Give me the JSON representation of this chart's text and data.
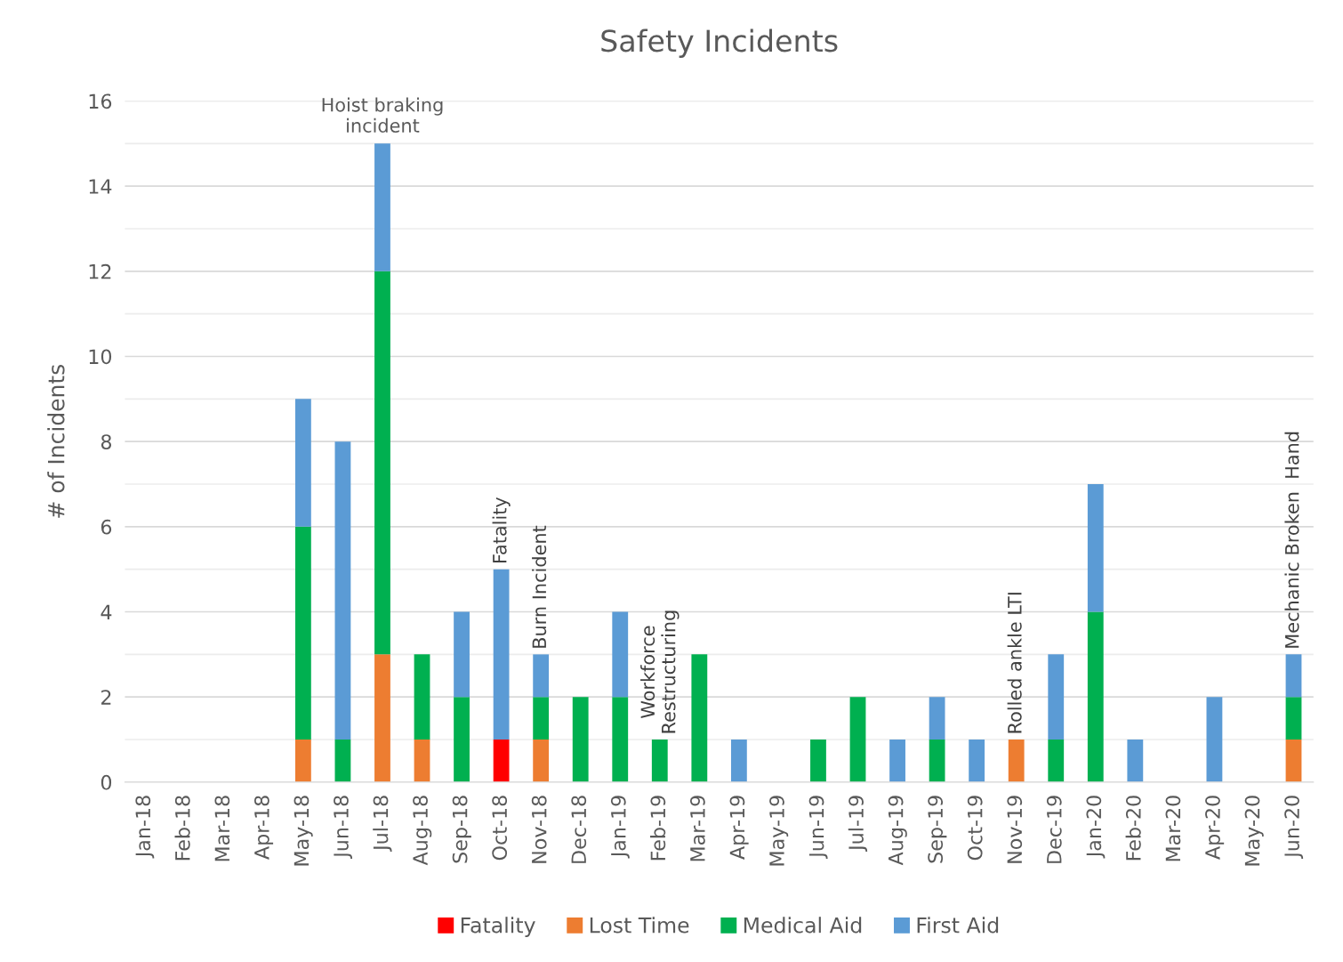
{
  "chart_data": {
    "type": "bar",
    "title": "Safety Incidents",
    "ylabel": "# of Incidents",
    "stacked": true,
    "categories": [
      "Jan-18",
      "Feb-18",
      "Mar-18",
      "Apr-18",
      "May-18",
      "Jun-18",
      "Jul-18",
      "Aug-18",
      "Sep-18",
      "Oct-18",
      "Nov-18",
      "Dec-18",
      "Jan-19",
      "Feb-19",
      "Mar-19",
      "Apr-19",
      "May-19",
      "Jun-19",
      "Jul-19",
      "Aug-19",
      "Sep-19",
      "Oct-19",
      "Nov-19",
      "Dec-19",
      "Jan-20",
      "Feb-20",
      "Mar-20",
      "Apr-20",
      "May-20",
      "Jun-20"
    ],
    "series": [
      {
        "name": "Fatality",
        "color": "#ff0000",
        "values": [
          0,
          0,
          0,
          0,
          0,
          0,
          0,
          0,
          0,
          1,
          0,
          0,
          0,
          0,
          0,
          0,
          0,
          0,
          0,
          0,
          0,
          0,
          0,
          0,
          0,
          0,
          0,
          0,
          0,
          0
        ]
      },
      {
        "name": "Lost Time",
        "color": "#ed7d31",
        "values": [
          0,
          0,
          0,
          0,
          1,
          0,
          3,
          1,
          0,
          0,
          1,
          0,
          0,
          0,
          0,
          0,
          0,
          0,
          0,
          0,
          0,
          0,
          1,
          0,
          0,
          0,
          0,
          0,
          0,
          1
        ]
      },
      {
        "name": "Medical Aid",
        "color": "#00b050",
        "values": [
          0,
          0,
          0,
          0,
          5,
          1,
          9,
          2,
          2,
          0,
          1,
          2,
          2,
          1,
          3,
          0,
          0,
          1,
          2,
          0,
          1,
          0,
          0,
          1,
          4,
          0,
          0,
          0,
          0,
          1
        ]
      },
      {
        "name": "First Aid",
        "color": "#5b9bd5",
        "values": [
          0,
          0,
          0,
          0,
          3,
          7,
          3,
          0,
          2,
          4,
          1,
          0,
          2,
          0,
          0,
          1,
          0,
          0,
          0,
          1,
          1,
          1,
          0,
          2,
          3,
          1,
          0,
          2,
          0,
          1
        ]
      }
    ],
    "ylim": [
      0,
      16
    ],
    "yticks": [
      0,
      2,
      4,
      6,
      8,
      10,
      12,
      14,
      16
    ],
    "grid": "y",
    "legend": "bottom",
    "annotations": [
      {
        "text": "Hoist braking\nincident",
        "x": "Jul-18",
        "y": 15
      },
      {
        "text": "Fatality",
        "x": "Oct-18",
        "y": 5
      },
      {
        "text": "Burn Incident",
        "x": "Nov-18",
        "y": 3
      },
      {
        "text": "Workforce\nRestructuring",
        "x": "Feb-19",
        "y": 1
      },
      {
        "text": "Rolled ankle LTI",
        "x": "Nov-19",
        "y": 1
      },
      {
        "text": "Mechanic Broken  Hand",
        "x": "Jun-20",
        "y": 3
      }
    ]
  }
}
